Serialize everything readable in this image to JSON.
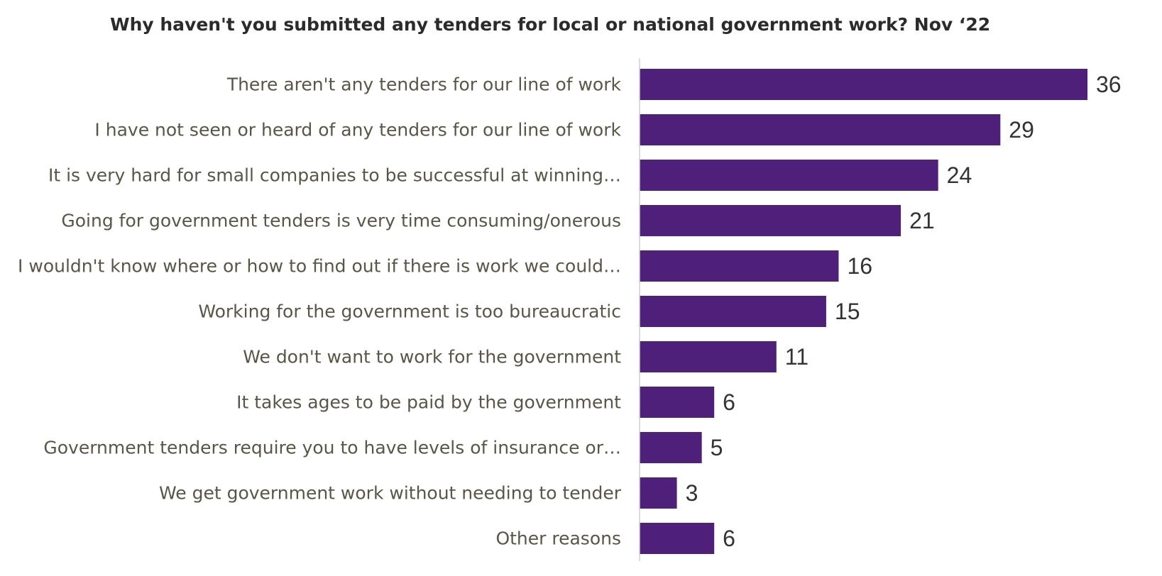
{
  "chart_data": {
    "type": "bar",
    "orientation": "horizontal",
    "title": "Why haven't you submitted any tenders for local or national government work? Nov ‘22",
    "categories": [
      "There aren't any tenders for our line of work",
      "I have not seen or heard of any tenders for our line of work",
      "It is very hard for small companies to be successful at winning…",
      "Going for government tenders is very time consuming/onerous",
      "I wouldn't know where or how to find out if there is work we could…",
      "Working for the government is too bureaucratic",
      "We don't want to work for the government",
      "It takes ages to be paid by the government",
      "Government tenders require you to have levels of insurance or…",
      "We get government work without needing to tender",
      "Other reasons"
    ],
    "values": [
      36,
      29,
      24,
      21,
      16,
      15,
      11,
      6,
      5,
      3,
      6
    ],
    "xlim": [
      0,
      36
    ],
    "grid": false,
    "legend": "none",
    "bar_color": "#4f2079",
    "axis_color": "#d0d0d0"
  }
}
